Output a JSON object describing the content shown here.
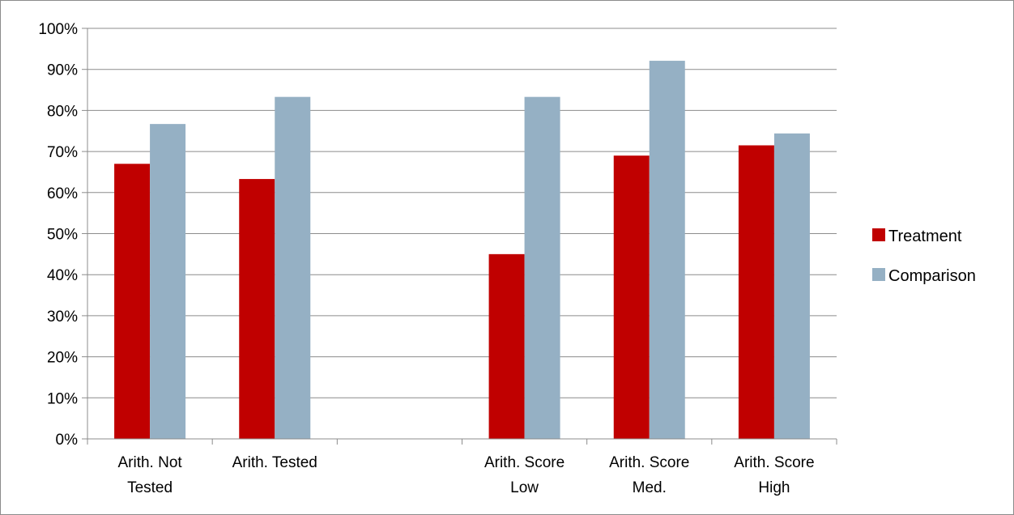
{
  "chart_data": {
    "type": "bar",
    "title": "",
    "xlabel": "",
    "ylabel": "",
    "ylim": [
      0,
      100
    ],
    "ytick_step": 10,
    "ytick_labels": [
      "0%",
      "10%",
      "20%",
      "30%",
      "40%",
      "50%",
      "60%",
      "70%",
      "80%",
      "90%",
      "100%"
    ],
    "grid": true,
    "legend_position": "right",
    "categories": [
      [
        "Arith. Not",
        "Tested"
      ],
      [
        "Arith. Tested"
      ],
      [
        ""
      ],
      [
        "Arith. Score",
        "Low"
      ],
      [
        "Arith. Score",
        "Med."
      ],
      [
        "Arith. Score",
        "High"
      ]
    ],
    "series": [
      {
        "name": "Treatment",
        "color": "#c00000",
        "values": [
          67,
          63.3,
          null,
          45,
          69,
          71.5
        ]
      },
      {
        "name": "Comparison",
        "color": "#95b0c4",
        "values": [
          76.7,
          83.3,
          null,
          83.3,
          92.1,
          74.4
        ]
      }
    ]
  }
}
